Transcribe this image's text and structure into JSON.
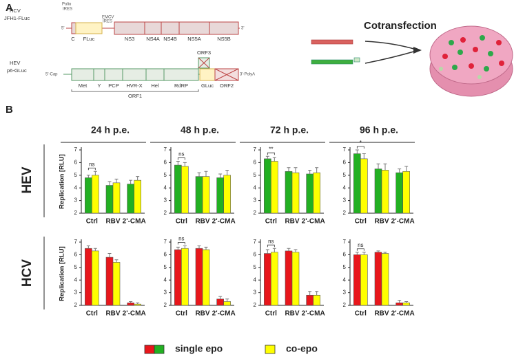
{
  "panel_labels": [
    "A",
    "B"
  ],
  "diagram": {
    "hcv": {
      "name": "HCV",
      "construct": "JFH1-FLuc",
      "polio_ires": [
        "Polio",
        "IRES"
      ],
      "emcv_ires": [
        "EMCV",
        "IRES"
      ],
      "five": "5'",
      "three": "3'",
      "c": "C",
      "fluc": "FLuc",
      "ns": [
        "NS3",
        "NS4A",
        "NS4B",
        "NS5A",
        "NS5B"
      ]
    },
    "hev": {
      "name": "HEV",
      "construct": "p6-GLuc",
      "cap": "5'-Cap",
      "polya": "3'-PolyA",
      "domains": [
        "Met",
        "Y",
        "PCP",
        "HVR-X",
        "Hel",
        "RdRP"
      ],
      "orf1": "ORF1",
      "orf3": "ORF3",
      "gluc": "GLuc",
      "orf2": "ORF2"
    },
    "cotransfection": "Cotransfection"
  },
  "row_labels": [
    "HEV",
    "HCV"
  ],
  "legend": [
    {
      "name": "single epo",
      "colors": [
        "#e8161b",
        "#22b022"
      ]
    },
    {
      "name": "co-epo",
      "colors": [
        "#ffff00"
      ]
    }
  ],
  "chart_data": [
    {
      "type": "bar",
      "title": "24 h p.e.",
      "ylabel": "Replication [RLU]",
      "categories": [
        "Ctrl",
        "RBV",
        "2'-CMA"
      ],
      "ylim": [
        2,
        7
      ],
      "yticks": [
        2,
        3,
        4,
        5,
        6,
        7
      ],
      "annotation": "ns",
      "series": [
        {
          "color": "#22b022",
          "values": [
            4.8,
            4.2,
            4.3
          ],
          "errors": [
            0.2,
            0.3,
            0.3
          ]
        },
        {
          "color": "#ffff00",
          "values": [
            5.0,
            4.4,
            4.6
          ],
          "errors": [
            0.3,
            0.3,
            0.3
          ]
        }
      ]
    },
    {
      "type": "bar",
      "title": "48 h p.e.",
      "categories": [
        "Ctrl",
        "RBV",
        "2'-CMA"
      ],
      "ylim": [
        2,
        7
      ],
      "yticks": [
        2,
        3,
        4,
        5,
        6,
        7
      ],
      "annotation": "ns",
      "series": [
        {
          "color": "#22b022",
          "values": [
            5.8,
            4.9,
            4.8
          ],
          "errors": [
            0.3,
            0.3,
            0.3
          ]
        },
        {
          "color": "#ffff00",
          "values": [
            5.7,
            4.9,
            5.0
          ],
          "errors": [
            0.3,
            0.4,
            0.4
          ]
        }
      ]
    },
    {
      "type": "bar",
      "title": "72 h p.e.",
      "categories": [
        "Ctrl",
        "RBV",
        "2'-CMA"
      ],
      "ylim": [
        2,
        7
      ],
      "yticks": [
        2,
        3,
        4,
        5,
        6,
        7
      ],
      "annotation": "**",
      "series": [
        {
          "color": "#22b022",
          "values": [
            6.3,
            5.3,
            5.1
          ],
          "errors": [
            0.2,
            0.3,
            0.3
          ]
        },
        {
          "color": "#ffff00",
          "values": [
            6.1,
            5.2,
            5.2
          ],
          "errors": [
            0.3,
            0.4,
            0.4
          ]
        }
      ]
    },
    {
      "type": "bar",
      "title": "96 h p.e.",
      "categories": [
        "Ctrl",
        "RBV",
        "2'-CMA"
      ],
      "ylim": [
        2,
        7
      ],
      "yticks": [
        2,
        3,
        4,
        5,
        6,
        7
      ],
      "annotation": "*",
      "series": [
        {
          "color": "#22b022",
          "values": [
            6.7,
            5.5,
            5.2
          ],
          "errors": [
            0.3,
            0.4,
            0.3
          ]
        },
        {
          "color": "#ffff00",
          "values": [
            6.3,
            5.4,
            5.3
          ],
          "errors": [
            0.4,
            0.5,
            0.4
          ]
        }
      ]
    },
    {
      "type": "bar",
      "ylabel": "Replication [RLU]",
      "categories": [
        "Ctrl",
        "RBV",
        "2'-CMA"
      ],
      "ylim": [
        2,
        7
      ],
      "yticks": [
        2,
        3,
        4,
        5,
        6,
        7
      ],
      "series": [
        {
          "color": "#e8161b",
          "values": [
            6.5,
            5.8,
            2.2
          ],
          "errors": [
            0.2,
            0.3,
            0.1
          ]
        },
        {
          "color": "#ffff00",
          "values": [
            6.3,
            5.4,
            2.1
          ],
          "errors": [
            0.2,
            0.2,
            0.1
          ]
        }
      ]
    },
    {
      "type": "bar",
      "categories": [
        "Ctrl",
        "RBV",
        "2'-CMA"
      ],
      "ylim": [
        2,
        7
      ],
      "yticks": [
        2,
        3,
        4,
        5,
        6,
        7
      ],
      "annotation": "ns",
      "series": [
        {
          "color": "#e8161b",
          "values": [
            6.4,
            6.5,
            2.5
          ],
          "errors": [
            0.2,
            0.2,
            0.2
          ]
        },
        {
          "color": "#ffff00",
          "values": [
            6.5,
            6.4,
            2.3
          ],
          "errors": [
            0.2,
            0.2,
            0.2
          ]
        }
      ]
    },
    {
      "type": "bar",
      "categories": [
        "Ctrl",
        "RBV",
        "2'-CMA"
      ],
      "ylim": [
        2,
        7
      ],
      "yticks": [
        2,
        3,
        4,
        5,
        6,
        7
      ],
      "annotation": "ns",
      "series": [
        {
          "color": "#e8161b",
          "values": [
            6.1,
            6.3,
            2.8
          ],
          "errors": [
            0.3,
            0.2,
            0.3
          ]
        },
        {
          "color": "#ffff00",
          "values": [
            6.2,
            6.2,
            2.8
          ],
          "errors": [
            0.3,
            0.2,
            0.3
          ]
        }
      ]
    },
    {
      "type": "bar",
      "categories": [
        "Ctrl",
        "RBV",
        "2'-CMA"
      ],
      "ylim": [
        2,
        7
      ],
      "yticks": [
        2,
        3,
        4,
        5,
        6,
        7
      ],
      "annotation": "ns",
      "series": [
        {
          "color": "#e8161b",
          "values": [
            6.0,
            6.2,
            2.2
          ],
          "errors": [
            0.2,
            0.1,
            0.2
          ]
        },
        {
          "color": "#ffff00",
          "values": [
            6.0,
            6.1,
            2.2
          ],
          "errors": [
            0.2,
            0.1,
            0.1
          ]
        }
      ]
    }
  ]
}
